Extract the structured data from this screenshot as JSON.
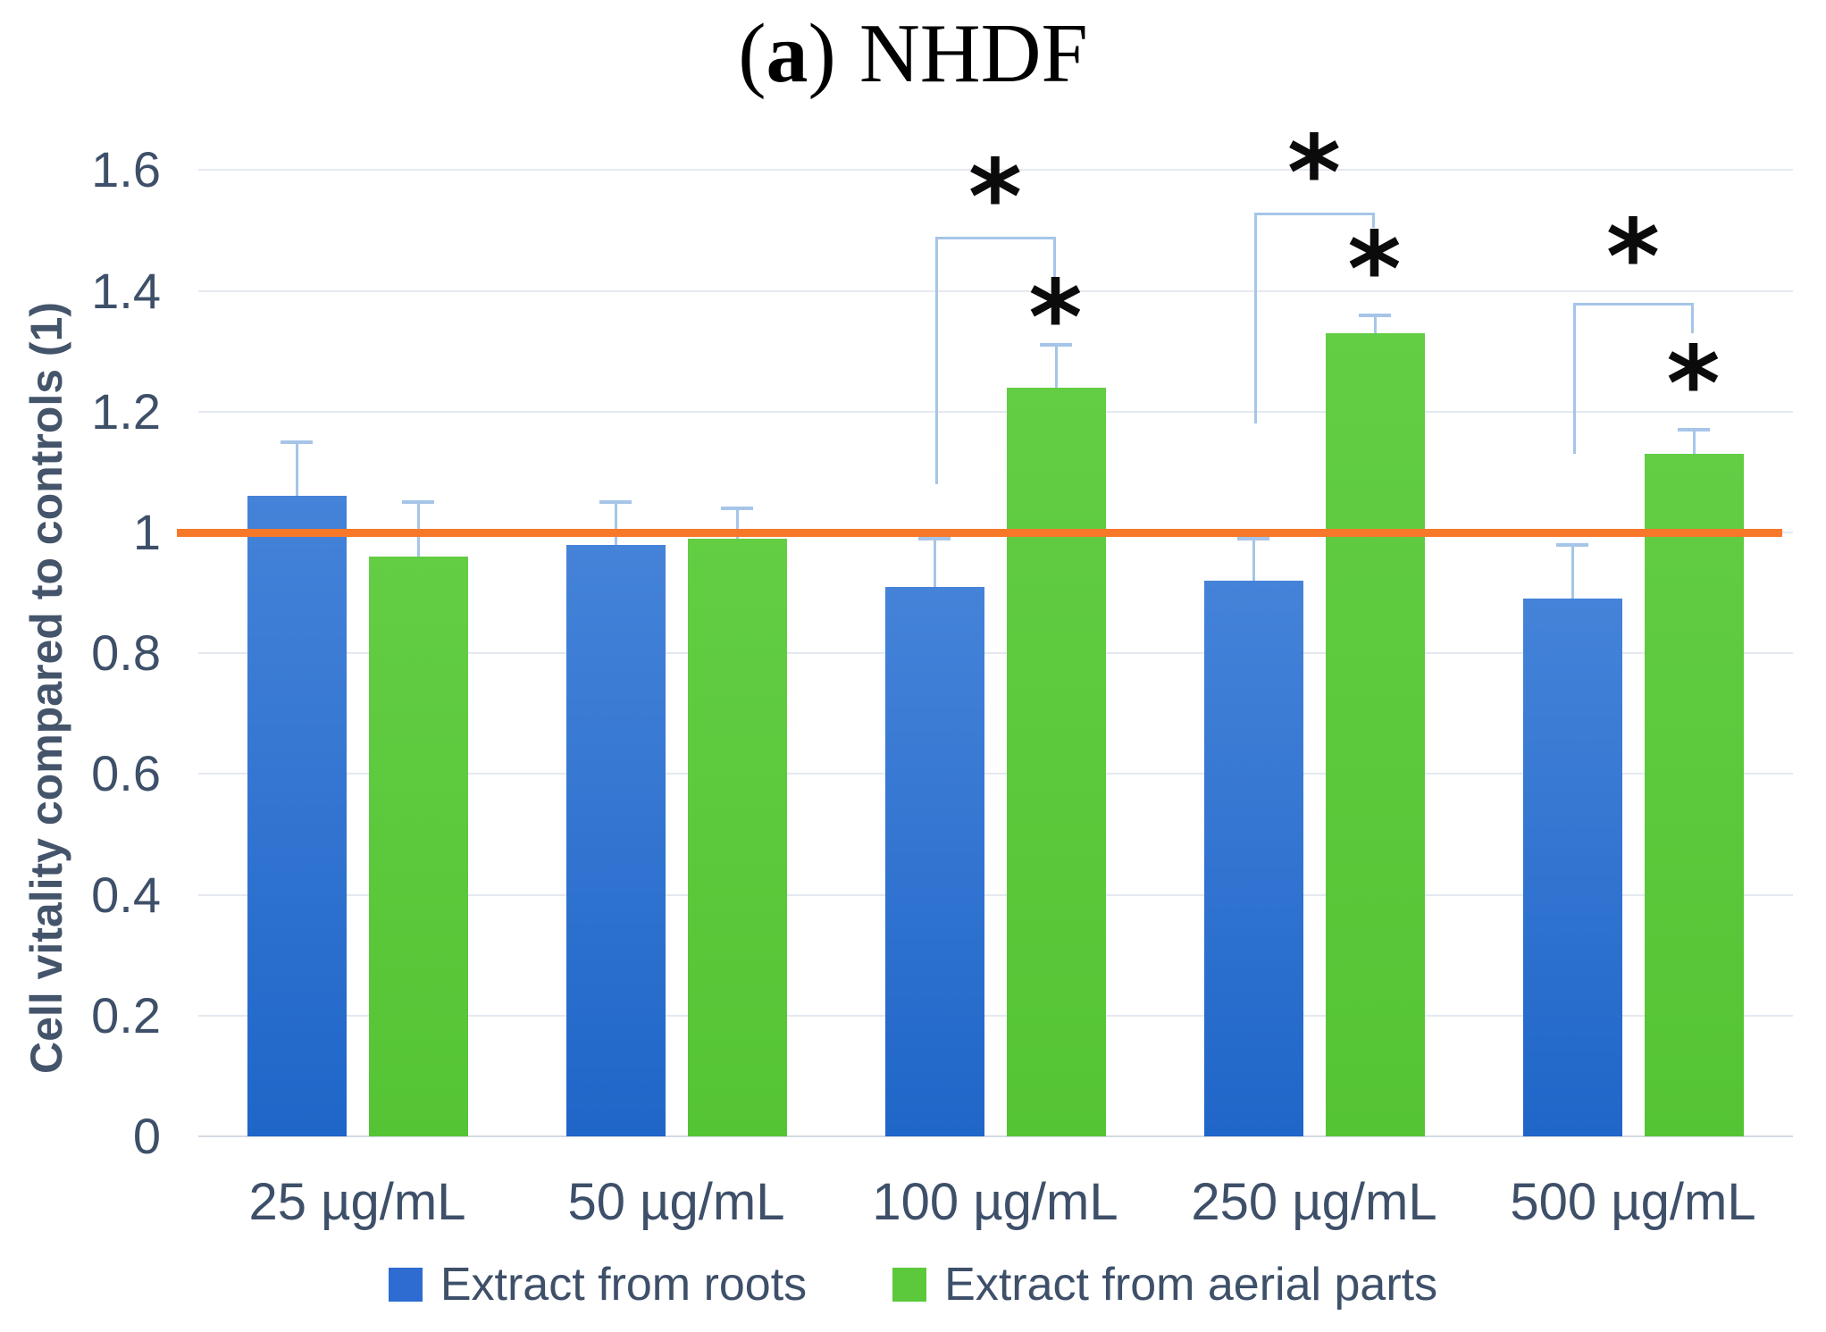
{
  "title": {
    "prefix_open": "(",
    "prefix_letter": "a",
    "prefix_close": ")",
    "main": "NHDF"
  },
  "chart_data": {
    "type": "bar",
    "title": "(a) NHDF",
    "xlabel": "",
    "ylabel": "Cell vitality compared to controls (1)",
    "ylim": [
      0,
      1.6
    ],
    "grid": true,
    "legend_position": "bottom",
    "yticks": [
      {
        "label": "0",
        "value": 0
      },
      {
        "label": "0.2",
        "value": 0.2
      },
      {
        "label": "0.4",
        "value": 0.4
      },
      {
        "label": "0.6",
        "value": 0.6
      },
      {
        "label": "0.8",
        "value": 0.8
      },
      {
        "label": "1",
        "value": 1
      },
      {
        "label": "1.2",
        "value": 1.2
      },
      {
        "label": "1.4",
        "value": 1.4
      },
      {
        "label": "1.6",
        "value": 1.6
      }
    ],
    "categories": [
      "25 µg/mL",
      "50 µg/mL",
      "100 µg/mL",
      "250 µg/mL",
      "500 µg/mL"
    ],
    "series": [
      {
        "key": "roots",
        "name": "Extract from roots",
        "color_top": "#4583d9",
        "color_bottom": "#1f66c8",
        "gradient": true,
        "values": [
          1.06,
          0.98,
          0.91,
          0.92,
          0.89
        ],
        "errors_up": [
          0.09,
          0.07,
          0.08,
          0.07,
          0.09
        ]
      },
      {
        "key": "aerial_parts",
        "name": "Extract from aerial parts",
        "color_top": "#63cd44",
        "color_bottom": "#55c434",
        "gradient": true,
        "values": [
          0.96,
          0.99,
          1.24,
          1.33,
          1.13
        ],
        "errors_up": [
          0.09,
          0.05,
          0.07,
          0.03,
          0.04
        ]
      }
    ],
    "reference_line": {
      "value": 1,
      "color": "#f8782a"
    },
    "significance_glyph": "*",
    "significance": [
      {
        "category_index": 2,
        "bracket_y": 1.49,
        "left_drop_y": 1.08,
        "right_drop_y": 1.42,
        "bracket_star_y": 1.57,
        "bar_star_y": 1.37
      },
      {
        "category_index": 3,
        "bracket_y": 1.53,
        "left_drop_y": 1.18,
        "right_drop_y": 1.505,
        "bracket_star_y": 1.61,
        "bar_star_y": 1.45
      },
      {
        "category_index": 4,
        "bracket_y": 1.38,
        "left_drop_y": 1.13,
        "right_drop_y": 1.33,
        "bracket_star_y": 1.47,
        "bar_star_y": 1.26
      }
    ],
    "colors": {
      "error_bars_and_brackets": "#a6c5e8",
      "gridline": "#e4e9f1",
      "axis_line": "#d4dae3",
      "tick_text": "#3e5069",
      "axis_title_text": "#44546a",
      "title_text": "#000000",
      "asterisk": "#0b0b0b"
    }
  },
  "legend": {
    "items": [
      {
        "key": "roots",
        "label": "Extract from roots",
        "color": "#2e6cd1"
      },
      {
        "key": "aerial_parts",
        "label": "Extract from aerial parts",
        "color": "#5cc93c"
      }
    ]
  }
}
